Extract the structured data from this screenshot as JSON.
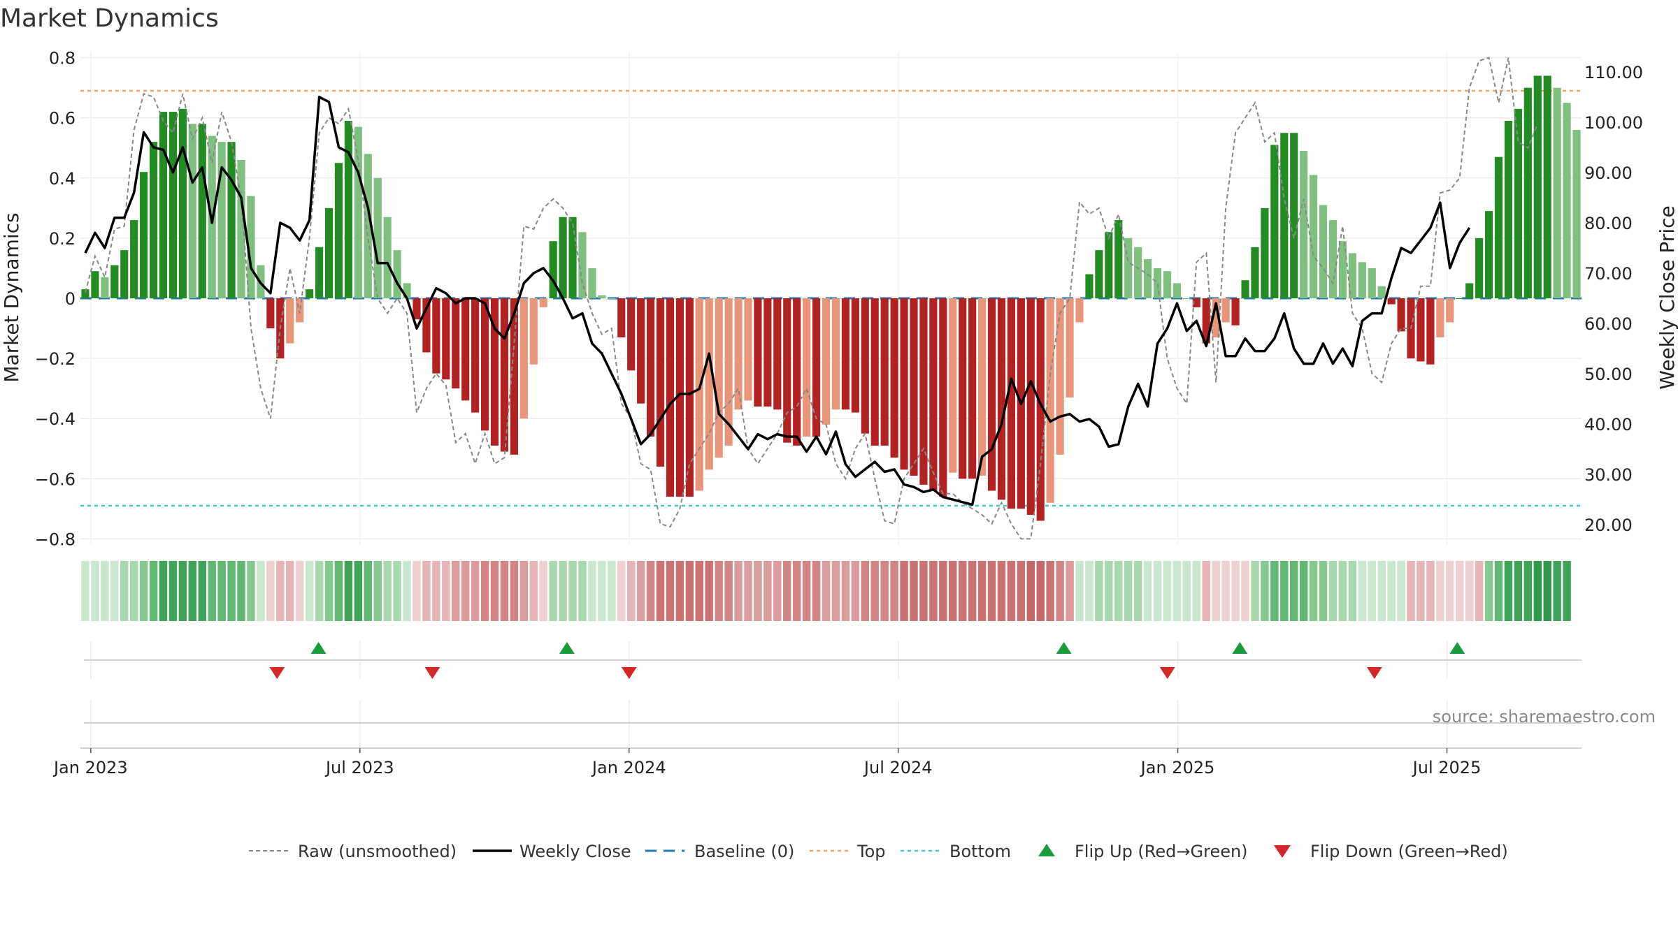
{
  "chart_data": {
    "type": "bar",
    "title": "Market Dynamics",
    "ylabel": "Market Dynamics",
    "y2label": "Weekly Close Price",
    "ylim": [
      -0.82,
      0.82
    ],
    "y2lim": [
      16.0,
      114.0
    ],
    "xlim": [
      "2022-12-26",
      "2025-10-06"
    ],
    "yticks": [
      0.8,
      0.6,
      0.4,
      0.2,
      0,
      -0.2,
      -0.4,
      -0.6,
      -0.8
    ],
    "ytick_labels": [
      "0.8",
      "0.6",
      "0.4",
      "0.2",
      "0",
      "−0.2",
      "−0.4",
      "−0.6",
      "−0.8"
    ],
    "y2ticks": [
      110,
      100,
      90,
      80,
      70,
      60,
      50,
      40,
      30,
      20
    ],
    "y2tick_labels": [
      "110.00",
      "100.00",
      "90.00",
      "80.00",
      "70.00",
      "60.00",
      "50.00",
      "40.00",
      "30.00",
      "20.00"
    ],
    "xticks": [
      "2023-01-02",
      "2023-07-03",
      "2024-01-01",
      "2024-07-01",
      "2025-01-06",
      "2025-07-07"
    ],
    "xtick_labels": [
      "Jan 2023",
      "Jul 2023",
      "Jan 2024",
      "Jul 2024",
      "Jan 2025",
      "Jul 2025"
    ],
    "top_line": 0.69,
    "bottom_line": -0.69,
    "baseline": 0,
    "bar_values": [
      0.03,
      0.09,
      0.07,
      0.11,
      0.16,
      0.26,
      0.42,
      0.52,
      0.62,
      0.62,
      0.63,
      0.58,
      0.58,
      0.54,
      0.52,
      0.52,
      0.46,
      0.34,
      0.11,
      -0.1,
      -0.2,
      -0.15,
      -0.08,
      0.03,
      0.17,
      0.3,
      0.45,
      0.59,
      0.57,
      0.48,
      0.4,
      0.27,
      0.16,
      0.05,
      -0.07,
      -0.18,
      -0.25,
      -0.27,
      -0.3,
      -0.34,
      -0.38,
      -0.44,
      -0.49,
      -0.51,
      -0.52,
      -0.4,
      -0.22,
      -0.03,
      0.19,
      0.27,
      0.27,
      0.22,
      0.1,
      0.01,
      0.0,
      -0.13,
      -0.24,
      -0.35,
      -0.46,
      -0.56,
      -0.66,
      -0.66,
      -0.66,
      -0.64,
      -0.57,
      -0.53,
      -0.49,
      -0.37,
      -0.34,
      -0.36,
      -0.36,
      -0.37,
      -0.48,
      -0.49,
      -0.46,
      -0.46,
      -0.42,
      -0.37,
      -0.37,
      -0.38,
      -0.45,
      -0.49,
      -0.49,
      -0.53,
      -0.57,
      -0.59,
      -0.62,
      -0.64,
      -0.66,
      -0.58,
      -0.6,
      -0.6,
      -0.59,
      -0.64,
      -0.67,
      -0.7,
      -0.7,
      -0.72,
      -0.74,
      -0.68,
      -0.52,
      -0.33,
      -0.08,
      0.08,
      0.16,
      0.22,
      0.26,
      0.2,
      0.17,
      0.13,
      0.1,
      0.09,
      0.05,
      0.0,
      -0.03,
      -0.15,
      -0.13,
      -0.08,
      -0.09,
      0.06,
      0.17,
      0.3,
      0.51,
      0.55,
      0.55,
      0.49,
      0.41,
      0.31,
      0.26,
      0.19,
      0.15,
      0.12,
      0.1,
      0.04,
      -0.02,
      -0.11,
      -0.2,
      -0.21,
      -0.22,
      -0.13,
      -0.08,
      0.0,
      0.05,
      0.2,
      0.29,
      0.47,
      0.59,
      0.63,
      0.7,
      0.74,
      0.74,
      0.7,
      0.65,
      0.56
    ],
    "raw_values": [
      0.02,
      0.14,
      0.07,
      0.23,
      0.24,
      0.56,
      0.68,
      0.67,
      0.59,
      0.55,
      0.68,
      0.53,
      0.6,
      0.45,
      0.62,
      0.52,
      0.33,
      -0.1,
      -0.3,
      -0.4,
      -0.1,
      0.1,
      -0.05,
      0.2,
      0.55,
      0.6,
      0.58,
      0.63,
      0.46,
      0.2,
      0.0,
      -0.05,
      0.0,
      -0.05,
      -0.38,
      -0.3,
      -0.25,
      -0.29,
      -0.48,
      -0.45,
      -0.55,
      -0.45,
      -0.55,
      -0.53,
      -0.15,
      0.24,
      0.23,
      0.3,
      0.33,
      0.3,
      0.25,
      0.05,
      -0.05,
      -0.12,
      -0.1,
      -0.35,
      -0.4,
      -0.55,
      -0.57,
      -0.75,
      -0.76,
      -0.7,
      -0.55,
      -0.5,
      -0.45,
      -0.38,
      -0.35,
      -0.3,
      -0.5,
      -0.55,
      -0.5,
      -0.45,
      -0.38,
      -0.36,
      -0.3,
      -0.4,
      -0.42,
      -0.55,
      -0.6,
      -0.5,
      -0.45,
      -0.6,
      -0.74,
      -0.75,
      -0.6,
      -0.55,
      -0.5,
      -0.58,
      -0.65,
      -0.65,
      -0.68,
      -0.7,
      -0.72,
      -0.75,
      -0.68,
      -0.75,
      -0.8,
      -0.8,
      -0.55,
      -0.25,
      -0.05,
      0.0,
      0.32,
      0.28,
      0.3,
      0.2,
      0.28,
      0.12,
      0.1,
      0.08,
      0.05,
      -0.2,
      -0.3,
      -0.35,
      0.12,
      0.15,
      -0.28,
      0.3,
      0.55,
      0.6,
      0.65,
      0.52,
      0.55,
      0.33,
      0.2,
      0.33,
      0.14,
      0.1,
      0.05,
      0.24,
      -0.05,
      -0.1,
      -0.25,
      -0.28,
      -0.15,
      -0.1,
      -0.1,
      0.04,
      0.04,
      0.35,
      0.36,
      0.4,
      0.7,
      0.79,
      0.8,
      0.65,
      0.8,
      0.52,
      0.5,
      0.58
    ],
    "close_values": [
      74,
      78,
      75,
      81,
      81,
      86,
      98,
      95,
      94.5,
      90,
      95,
      88,
      91,
      80,
      91,
      88.5,
      85,
      71,
      68,
      66,
      80,
      79,
      76.5,
      80.5,
      105,
      104,
      95,
      94,
      90,
      83,
      72,
      72,
      68,
      65,
      59,
      63,
      67,
      66,
      64,
      65,
      65,
      64,
      59,
      57,
      62,
      68,
      70,
      71,
      68.5,
      65,
      61,
      62,
      56,
      54,
      50,
      46,
      41,
      36,
      38,
      41,
      44,
      46,
      46,
      47,
      54,
      42,
      40,
      37.5,
      35,
      38,
      37,
      38,
      37.5,
      37.5,
      34.5,
      37.5,
      34,
      38.5,
      32,
      29.5,
      31,
      32.5,
      30.5,
      31,
      28,
      27.5,
      26.5,
      27,
      25.5,
      25,
      24.5,
      24,
      33.5,
      35,
      40,
      49,
      44,
      48.5,
      44,
      40.5,
      41.5,
      42,
      40.5,
      41,
      39.5,
      35.5,
      36,
      43.5,
      48,
      43.5,
      56,
      59,
      64,
      58.5,
      60.5,
      55.5,
      64,
      53.5,
      53.5,
      57,
      54.5,
      54.5,
      57,
      62,
      55,
      52,
      52,
      56,
      52,
      55,
      51.5,
      60.5,
      62,
      62,
      69,
      75,
      74,
      76.5,
      79,
      84,
      71,
      76,
      79
    ],
    "heat_strips": [
      {
        "start": 0,
        "end": 18,
        "side": "green"
      },
      {
        "start": 19,
        "end": 22,
        "side": "red"
      },
      {
        "start": 23,
        "end": 33,
        "side": "green"
      },
      {
        "start": 34,
        "end": 47,
        "side": "red"
      },
      {
        "start": 48,
        "end": 54,
        "side": "green"
      },
      {
        "start": 55,
        "end": 101,
        "side": "red"
      },
      {
        "start": 102,
        "end": 114,
        "side": "green"
      },
      {
        "start": 115,
        "end": 119,
        "side": "red"
      },
      {
        "start": 120,
        "end": 135,
        "side": "green"
      },
      {
        "start": 136,
        "end": 143,
        "side": "red"
      },
      {
        "start": 144,
        "end": 152,
        "side": "green"
      }
    ],
    "flip_up_dates": [
      "2023-06-05",
      "2023-11-20",
      "2024-10-21",
      "2025-02-17",
      "2025-07-14"
    ],
    "flip_down_dates": [
      "2023-05-08",
      "2023-08-21",
      "2024-01-01",
      "2024-12-30",
      "2025-05-19"
    ],
    "legend": [
      {
        "key": "raw",
        "label": "Raw (unsmoothed)"
      },
      {
        "key": "close",
        "label": "Weekly Close"
      },
      {
        "key": "baseline",
        "label": "Baseline (0)"
      },
      {
        "key": "top",
        "label": "Top"
      },
      {
        "key": "bottom",
        "label": "Bottom"
      },
      {
        "key": "flip_up",
        "label": "Flip Up (Red→Green)"
      },
      {
        "key": "flip_down",
        "label": "Flip Down (Green→Red)"
      }
    ],
    "legend_position": "bottom-center",
    "grid": true
  },
  "source_text": "source: sharemaestro.com",
  "colors": {
    "green_dark": "#228b22",
    "green_light": "#7fbf7f",
    "red_dark": "#b22222",
    "red_light": "#e8957a",
    "raw_line": "#888888",
    "close_line": "#000000",
    "baseline": "#1f77b4",
    "top_line": "#f4a261",
    "bottom_line": "#48c2d6",
    "flip_up": "#1a9c3c",
    "flip_down": "#d62728"
  }
}
